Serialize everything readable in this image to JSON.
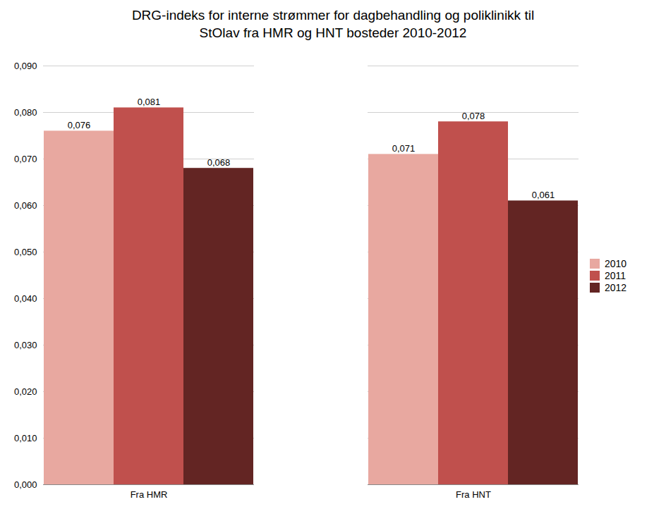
{
  "chart_data": {
    "type": "bar",
    "title": "DRG-indeks for interne strømmer for dagbehandling og poliklinikk til\nStOlav fra HMR og HNT bosteder  2010-2012",
    "categories": [
      "Fra HMR",
      "Fra HNT"
    ],
    "series": [
      {
        "name": "2010",
        "color": "#e8a8a0",
        "values": [
          0.076,
          0.071
        ],
        "value_labels": [
          "0,076",
          "0,071"
        ]
      },
      {
        "name": "2011",
        "color": "#c0504d",
        "values": [
          0.081,
          0.078
        ],
        "value_labels": [
          "0,081",
          "0,078"
        ]
      },
      {
        "name": "2012",
        "color": "#632523",
        "values": [
          0.068,
          0.061
        ],
        "value_labels": [
          "0,068",
          "0,061"
        ]
      }
    ],
    "ylim": [
      0,
      0.09
    ],
    "yticks": [
      {
        "value": 0,
        "label": "0,000"
      },
      {
        "value": 0.01,
        "label": "0,010"
      },
      {
        "value": 0.02,
        "label": "0,020"
      },
      {
        "value": 0.03,
        "label": "0,030"
      },
      {
        "value": 0.04,
        "label": "0,040"
      },
      {
        "value": 0.05,
        "label": "0,050"
      },
      {
        "value": 0.06,
        "label": "0,060"
      },
      {
        "value": 0.07,
        "label": "0,070"
      },
      {
        "value": 0.08,
        "label": "0,080"
      },
      {
        "value": 0.09,
        "label": "0,090"
      }
    ],
    "grid": true,
    "legend": "right",
    "data_labels": true
  }
}
